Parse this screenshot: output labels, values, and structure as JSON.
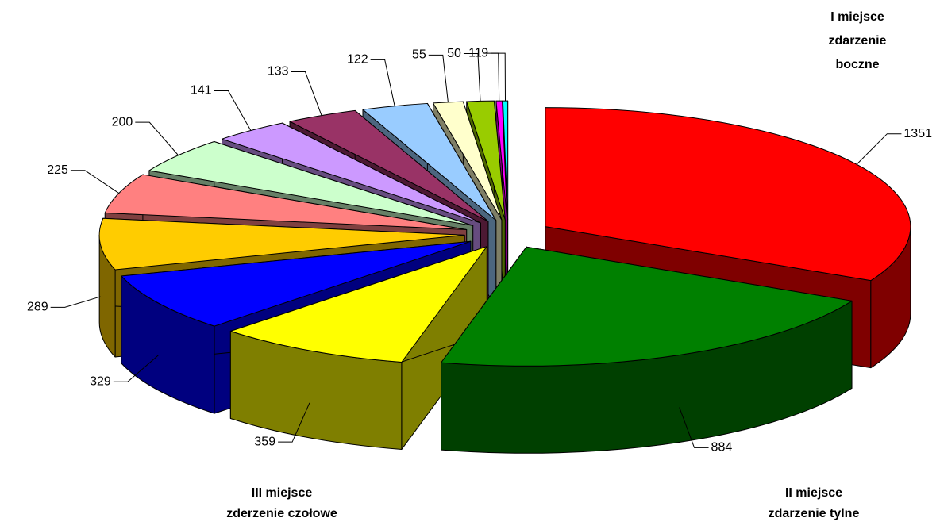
{
  "chart_data": {
    "type": "pie3d",
    "categories": [
      null,
      null,
      null,
      null,
      null,
      null,
      null,
      null,
      null,
      null,
      null,
      null,
      null,
      null
    ],
    "values": [
      1351,
      884,
      359,
      329,
      289,
      225,
      200,
      141,
      133,
      122,
      55,
      50,
      11,
      9
    ],
    "colors": [
      "#ff0000",
      "#008000",
      "#ffff00",
      "#0000ff",
      "#ffcc00",
      "#ff8080",
      "#ccffcc",
      "#cc99ff",
      "#993366",
      "#99ccff",
      "#ffffcc",
      "#99cc00",
      "#ff00ff",
      "#00ffff"
    ],
    "annotations": [
      [
        "I miejsce",
        "zdarzenie",
        "boczne"
      ],
      [
        "II miejsce",
        "zdarzenie tylne"
      ],
      [
        "III miejsce",
        "zderzenie czołowe"
      ]
    ]
  }
}
